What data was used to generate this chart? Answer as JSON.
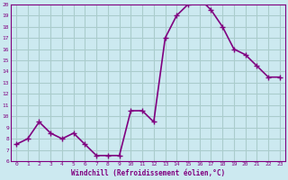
{
  "x": [
    0,
    1,
    2,
    3,
    4,
    5,
    6,
    7,
    8,
    9,
    10,
    11,
    12,
    13,
    14,
    15,
    16,
    17,
    18,
    19,
    20,
    21,
    22,
    23
  ],
  "y": [
    7.5,
    8.0,
    9.5,
    8.5,
    8.0,
    8.5,
    7.5,
    6.5,
    6.5,
    6.5,
    10.5,
    10.5,
    9.5,
    17.0,
    19.0,
    20.0,
    20.5,
    19.5,
    18.0,
    16.0,
    15.5,
    14.5,
    13.5,
    13.5
  ],
  "bg_color": "#cce9f0",
  "line_color": "#800080",
  "marker_color": "#800080",
  "grid_color": "#aacccc",
  "axis_label_color": "#800080",
  "tick_color": "#800080",
  "xlabel": "Windchill (Refroidissement éolien,°C)",
  "ylim": [
    6,
    20
  ],
  "yticks": [
    6,
    7,
    8,
    9,
    10,
    11,
    12,
    13,
    14,
    15,
    16,
    17,
    18,
    19,
    20
  ],
  "xticks": [
    0,
    1,
    2,
    3,
    4,
    5,
    6,
    7,
    8,
    9,
    10,
    11,
    12,
    13,
    14,
    15,
    16,
    17,
    18,
    19,
    20,
    21,
    22,
    23
  ],
  "line_width": 1.2,
  "marker_size": 2.5
}
